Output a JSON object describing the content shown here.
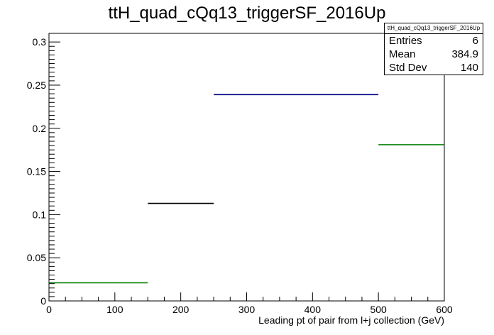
{
  "chart_data": {
    "type": "histogram",
    "title": "ttH_quad_cQq13_triggerSF_2016Up",
    "xlabel": "Leading pt of pair from l+j collection (GeV)",
    "ylabel": "",
    "xlim": [
      0,
      600
    ],
    "ylim": [
      0,
      0.31
    ],
    "x_ticks": [
      "0",
      "100",
      "200",
      "300",
      "400",
      "500",
      "600"
    ],
    "y_ticks": [
      "0",
      "0.05",
      "0.1",
      "0.15",
      "0.2",
      "0.25",
      "0.3"
    ],
    "bins": [
      {
        "low": 0,
        "high": 150,
        "value": 0.021,
        "color": "#007f00"
      },
      {
        "low": 150,
        "high": 250,
        "value": 0.113,
        "color": "#000000"
      },
      {
        "low": 250,
        "high": 500,
        "value": 0.239,
        "color": "#00007f"
      },
      {
        "low": 500,
        "high": 600,
        "value": 0.181,
        "color": "#007f00"
      }
    ],
    "grid": false
  },
  "stats": {
    "title": "ttH_quad_cQq13_triggerSF_2016Up",
    "rows": [
      {
        "label": "Entries",
        "value": "6"
      },
      {
        "label": "Mean",
        "value": "384.9"
      },
      {
        "label": "Std Dev",
        "value": "140"
      }
    ]
  }
}
